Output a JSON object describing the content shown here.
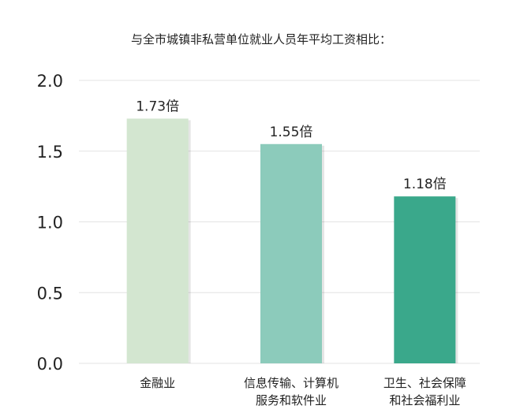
{
  "chart_data": {
    "type": "bar",
    "title": "与全市城镇非私营单位就业人员年平均工资相比：",
    "categories": [
      [
        "金融业"
      ],
      [
        "信息传输、计算机",
        "服务和软件业"
      ],
      [
        "卫生、社会保障",
        "和社会福利业"
      ]
    ],
    "values": [
      1.73,
      1.55,
      1.18
    ],
    "data_labels": [
      "1.73倍",
      "1.55倍",
      "1.18倍"
    ],
    "ylim": [
      0,
      2.0
    ],
    "yticks": [
      "0.0",
      "0.5",
      "1.0",
      "1.5",
      "2.0"
    ],
    "grid": true,
    "colors": [
      "#d3e6d0",
      "#8ccbbb",
      "#3aa88b"
    ],
    "xlabel": "",
    "ylabel": ""
  }
}
